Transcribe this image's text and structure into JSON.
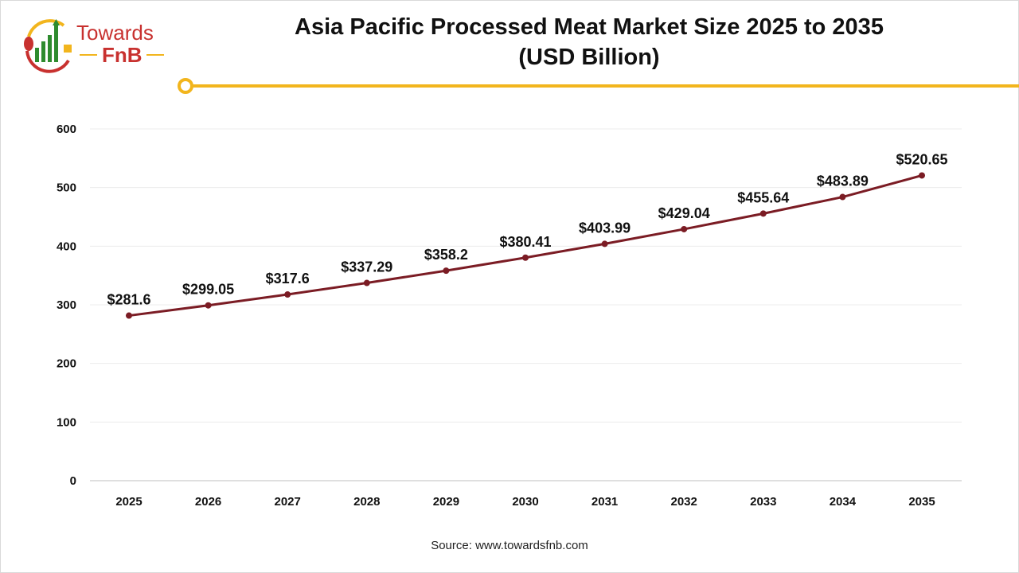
{
  "logo": {
    "text_top": "Towards",
    "text_bottom": "FnB",
    "colors": {
      "red": "#c8312f",
      "green": "#2e8b2e",
      "yellow": "#f2b51d"
    }
  },
  "header": {
    "title_line1": "Asia Pacific Processed Meat Market Size 2025 to 2035",
    "title_line2": "(USD Billion)",
    "accent_color": "#f2b51d"
  },
  "chart_data": {
    "type": "line",
    "title": "Asia Pacific Processed Meat Market Size 2025 to 2035 (USD Billion)",
    "categories": [
      "2025",
      "2026",
      "2027",
      "2028",
      "2029",
      "2030",
      "2031",
      "2032",
      "2033",
      "2034",
      "2035"
    ],
    "values": [
      281.6,
      299.05,
      317.6,
      337.29,
      358.2,
      380.41,
      403.99,
      429.04,
      455.64,
      483.89,
      520.65
    ],
    "data_labels": [
      "$281.6",
      "$299.05",
      "$317.6",
      "$337.29",
      "$358.2",
      "$380.41",
      "$403.99",
      "$429.04",
      "$455.64",
      "$483.89",
      "$520.65"
    ],
    "ylim": [
      0,
      600
    ],
    "yticks": [
      "0",
      "100",
      "200",
      "300",
      "400",
      "500",
      "600"
    ],
    "grid": true,
    "line_color": "#7b1c24",
    "xlabel": "",
    "ylabel": ""
  },
  "footer": {
    "source": "Source: www.towardsfnb.com"
  }
}
